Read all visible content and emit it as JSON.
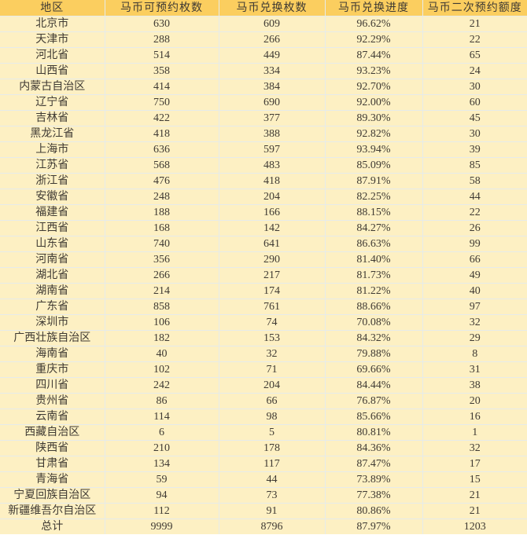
{
  "colors": {
    "header_bg": "#fbce5f",
    "row_bg": "#fdf0c3",
    "grid": "#e6ebea",
    "text": "#3f3a33"
  },
  "chart_data": {
    "type": "table",
    "title": "",
    "total_label": "总计",
    "columns": [
      "地区",
      "马币可预约枚数",
      "马币兑换枚数",
      "马币兑换进度",
      "马币二次预约额度"
    ],
    "rows": [
      [
        "北京市",
        "630",
        "609",
        "96.62%",
        "21"
      ],
      [
        "天津市",
        "288",
        "266",
        "92.29%",
        "22"
      ],
      [
        "河北省",
        "514",
        "449",
        "87.44%",
        "65"
      ],
      [
        "山西省",
        "358",
        "334",
        "93.23%",
        "24"
      ],
      [
        "内蒙古自治区",
        "414",
        "384",
        "92.70%",
        "30"
      ],
      [
        "辽宁省",
        "750",
        "690",
        "92.00%",
        "60"
      ],
      [
        "吉林省",
        "422",
        "377",
        "89.30%",
        "45"
      ],
      [
        "黑龙江省",
        "418",
        "388",
        "92.82%",
        "30"
      ],
      [
        "上海市",
        "636",
        "597",
        "93.94%",
        "39"
      ],
      [
        "江苏省",
        "568",
        "483",
        "85.09%",
        "85"
      ],
      [
        "浙江省",
        "476",
        "418",
        "87.91%",
        "58"
      ],
      [
        "安徽省",
        "248",
        "204",
        "82.25%",
        "44"
      ],
      [
        "福建省",
        "188",
        "166",
        "88.15%",
        "22"
      ],
      [
        "江西省",
        "168",
        "142",
        "84.27%",
        "26"
      ],
      [
        "山东省",
        "740",
        "641",
        "86.63%",
        "99"
      ],
      [
        "河南省",
        "356",
        "290",
        "81.40%",
        "66"
      ],
      [
        "湖北省",
        "266",
        "217",
        "81.73%",
        "49"
      ],
      [
        "湖南省",
        "214",
        "174",
        "81.22%",
        "40"
      ],
      [
        "广东省",
        "858",
        "761",
        "88.66%",
        "97"
      ],
      [
        "深圳市",
        "106",
        "74",
        "70.08%",
        "32"
      ],
      [
        "广西壮族自治区",
        "182",
        "153",
        "84.32%",
        "29"
      ],
      [
        "海南省",
        "40",
        "32",
        "79.88%",
        "8"
      ],
      [
        "重庆市",
        "102",
        "71",
        "69.66%",
        "31"
      ],
      [
        "四川省",
        "242",
        "204",
        "84.44%",
        "38"
      ],
      [
        "贵州省",
        "86",
        "66",
        "76.87%",
        "20"
      ],
      [
        "云南省",
        "114",
        "98",
        "85.66%",
        "16"
      ],
      [
        "西藏自治区",
        "6",
        "5",
        "80.81%",
        "1"
      ],
      [
        "陕西省",
        "210",
        "178",
        "84.36%",
        "32"
      ],
      [
        "甘肃省",
        "134",
        "117",
        "87.47%",
        "17"
      ],
      [
        "青海省",
        "59",
        "44",
        "73.89%",
        "15"
      ],
      [
        "宁夏回族自治区",
        "94",
        "73",
        "77.38%",
        "21"
      ],
      [
        "新疆维吾尔自治区",
        "112",
        "91",
        "80.86%",
        "21"
      ],
      [
        "总计",
        "9999",
        "8796",
        "87.97%",
        "1203"
      ]
    ]
  }
}
